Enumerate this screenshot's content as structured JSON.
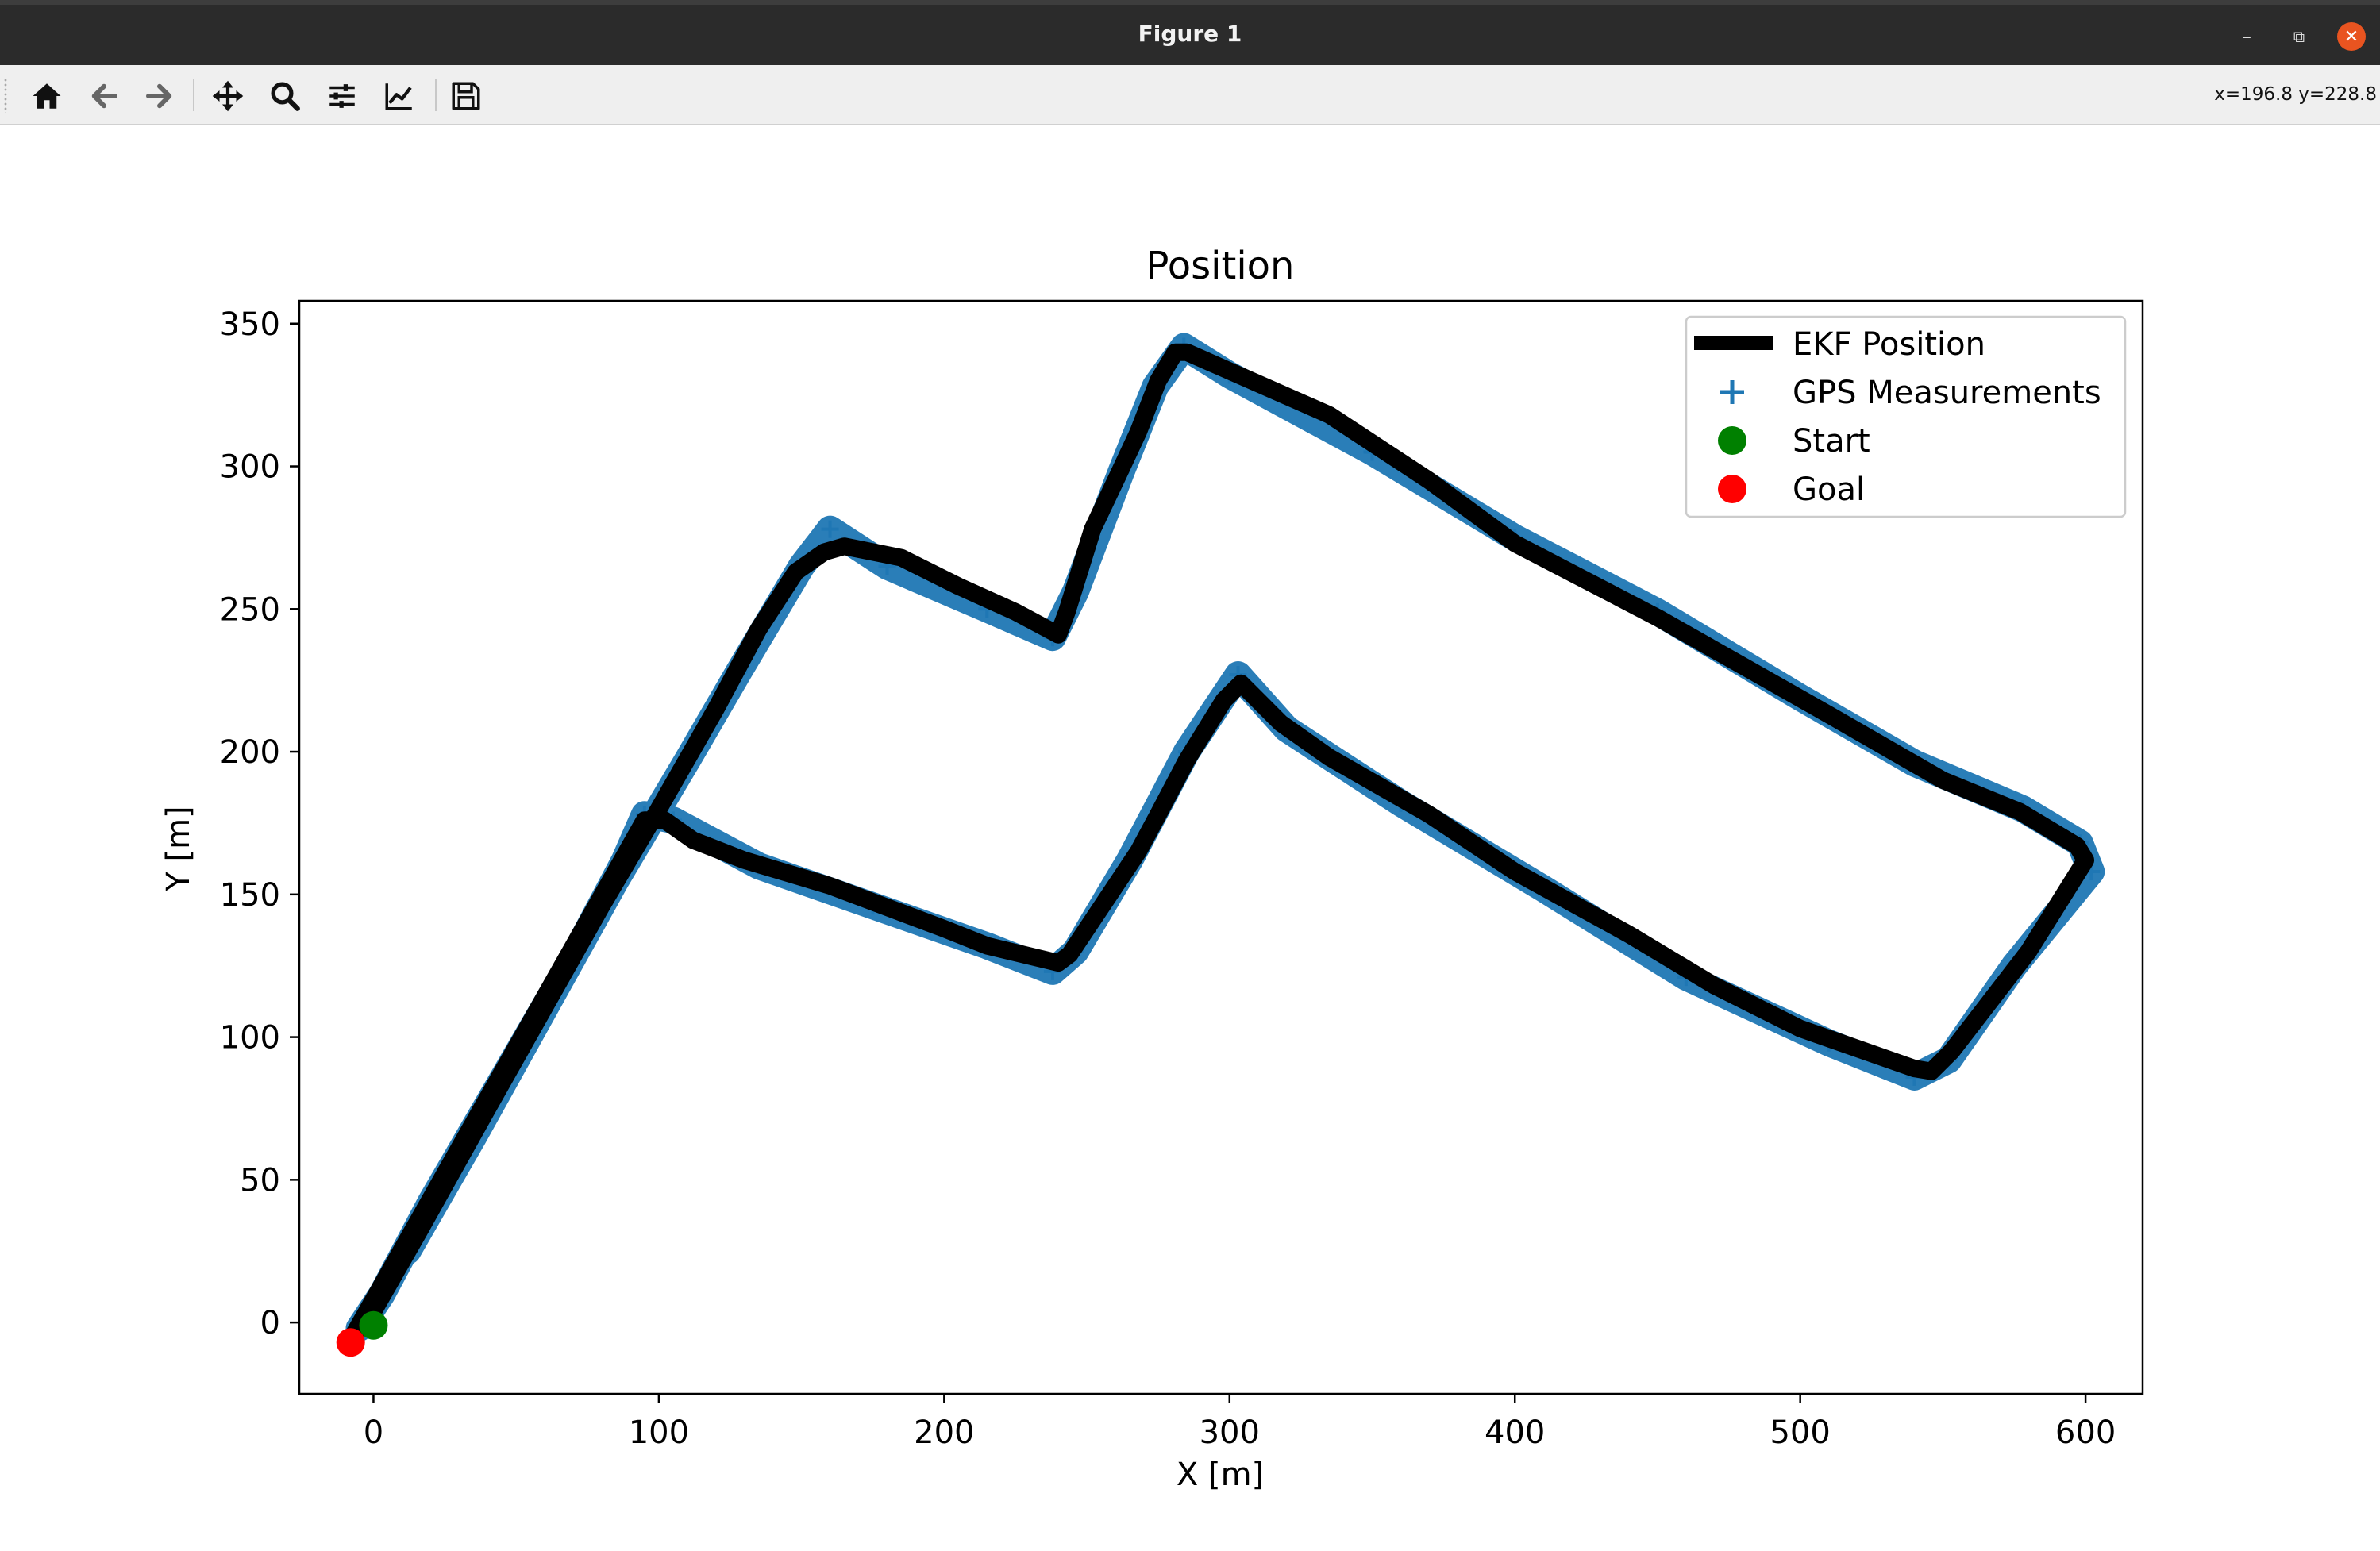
{
  "window": {
    "title": "Figure 1",
    "buttons": {
      "minimize": "–",
      "maximize": "⧉",
      "close": "✕"
    }
  },
  "toolbar": {
    "tools": [
      "home-icon",
      "back-icon",
      "forward-icon",
      "pan-icon",
      "zoom-icon",
      "configure-subplots-icon",
      "edit-axis-icon",
      "save-icon"
    ],
    "coordinates": "x=196.8 y=228.8"
  },
  "colors": {
    "ekf": "#000000",
    "gps": "#1f77b4",
    "start": "#008000",
    "goal": "#ff0000",
    "titlebar": "#2b2b2b",
    "close": "#e95420"
  },
  "chart_data": {
    "type": "line",
    "title": "Position",
    "xlabel": "X [m]",
    "ylabel": "Y [m]",
    "xlim": [
      -26,
      620
    ],
    "ylim": [
      -25,
      358
    ],
    "xticks": [
      0,
      100,
      200,
      300,
      400,
      500,
      600
    ],
    "yticks": [
      0,
      50,
      100,
      150,
      200,
      250,
      300,
      350
    ],
    "grid": false,
    "legend": {
      "placement": "top-right",
      "entries": [
        "EKF Position",
        "GPS Measurements",
        "Start",
        "Goal"
      ]
    },
    "series": [
      {
        "name": "EKF Position",
        "kind": "line",
        "points": [
          [
            -8,
            -6
          ],
          [
            0,
            8
          ],
          [
            95,
            176
          ],
          [
            102,
            176
          ],
          [
            112,
            169
          ],
          [
            130,
            162
          ],
          [
            160,
            153
          ],
          [
            200,
            138
          ],
          [
            215,
            132
          ],
          [
            240,
            126
          ],
          [
            244,
            129
          ],
          [
            268,
            165
          ],
          [
            275,
            178
          ],
          [
            285,
            197
          ],
          [
            298,
            218
          ],
          [
            304,
            224
          ],
          [
            318,
            210
          ],
          [
            335,
            198
          ],
          [
            370,
            178
          ],
          [
            400,
            158
          ],
          [
            440,
            136
          ],
          [
            470,
            118
          ],
          [
            500,
            103
          ],
          [
            540,
            89
          ],
          [
            546,
            88
          ],
          [
            553,
            95
          ],
          [
            580,
            130
          ],
          [
            600,
            162
          ],
          [
            597,
            167
          ],
          [
            577,
            179
          ],
          [
            550,
            190
          ],
          [
            510,
            213
          ],
          [
            480,
            230
          ],
          [
            450,
            247
          ],
          [
            400,
            273
          ],
          [
            370,
            295
          ],
          [
            335,
            318
          ],
          [
            285,
            340
          ],
          [
            281,
            340
          ],
          [
            275,
            330
          ],
          [
            268,
            312
          ],
          [
            261,
            297
          ],
          [
            252,
            278
          ],
          [
            243,
            249
          ],
          [
            240,
            241
          ],
          [
            225,
            249
          ],
          [
            205,
            258
          ],
          [
            185,
            268
          ],
          [
            165,
            272
          ],
          [
            158,
            270
          ],
          [
            148,
            263
          ],
          [
            135,
            243
          ],
          [
            120,
            215
          ],
          [
            100,
            180
          ],
          [
            80,
            146
          ],
          [
            40,
            75
          ],
          [
            16,
            32
          ],
          [
            0,
            4
          ],
          [
            -8,
            -6
          ]
        ]
      },
      {
        "name": "GPS Measurements",
        "kind": "scatter",
        "marker": "+",
        "points": [
          [
            -5,
            -2
          ],
          [
            3,
            10
          ],
          [
            20,
            42
          ],
          [
            45,
            85
          ],
          [
            70,
            128
          ],
          [
            88,
            162
          ],
          [
            95,
            178
          ],
          [
            105,
            176
          ],
          [
            135,
            160
          ],
          [
            175,
            146
          ],
          [
            215,
            132
          ],
          [
            238,
            123
          ],
          [
            246,
            130
          ],
          [
            265,
            162
          ],
          [
            285,
            200
          ],
          [
            303,
            227
          ],
          [
            320,
            208
          ],
          [
            360,
            182
          ],
          [
            410,
            152
          ],
          [
            460,
            121
          ],
          [
            510,
            98
          ],
          [
            540,
            86
          ],
          [
            552,
            92
          ],
          [
            575,
            125
          ],
          [
            602,
            158
          ],
          [
            598,
            168
          ],
          [
            578,
            180
          ],
          [
            540,
            196
          ],
          [
            500,
            219
          ],
          [
            450,
            249
          ],
          [
            400,
            275
          ],
          [
            350,
            305
          ],
          [
            300,
            332
          ],
          [
            284,
            342
          ],
          [
            274,
            328
          ],
          [
            262,
            298
          ],
          [
            246,
            256
          ],
          [
            238,
            240
          ],
          [
            215,
            250
          ],
          [
            180,
            265
          ],
          [
            160,
            278
          ],
          [
            150,
            265
          ],
          [
            128,
            228
          ],
          [
            110,
            197
          ],
          [
            85,
            155
          ],
          [
            60,
            110
          ],
          [
            35,
            65
          ],
          [
            12,
            25
          ]
        ]
      },
      {
        "name": "Start",
        "kind": "scatter",
        "marker": "o",
        "points": [
          [
            0,
            -1
          ]
        ]
      },
      {
        "name": "Goal",
        "kind": "scatter",
        "marker": "o",
        "points": [
          [
            -8,
            -7
          ]
        ]
      }
    ]
  }
}
